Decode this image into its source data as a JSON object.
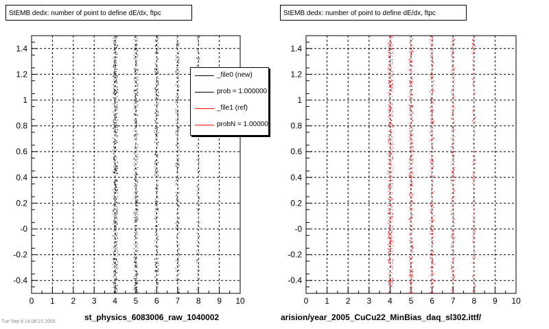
{
  "panels": [
    {
      "title": "StEMB dedx: number of point to define dE/dx, ftpc",
      "xtitle": "st_physics_6083006_raw_1040002"
    },
    {
      "title": "StEMB dedx: number of point to define dE/dx, ftpc",
      "xtitle": "arision/year_2005_CuCu22_MinBias_daq_sl302.ittf/"
    }
  ],
  "legend": [
    {
      "label": "_file0 (new)",
      "color": "#000000"
    },
    {
      "label": "prob = 1.000000",
      "color": "#000000"
    },
    {
      "label": "_file1 (ref)",
      "color": "#ff0000"
    },
    {
      "label": "probN = 1.000000",
      "color": "#ff0000"
    }
  ],
  "bottom_text": "Tue Sep  6  14:08:21  2005",
  "chart_data": [
    {
      "type": "scatter",
      "title": "StEMB dedx: number of point to define dE/dx, ftpc",
      "xlabel": "st_physics_6083006_raw_1040002",
      "ylabel": "",
      "xlim": [
        0,
        10
      ],
      "ylim": [
        -0.5,
        1.5
      ],
      "x_ticks": [
        "0",
        "1",
        "2",
        "3",
        "4",
        "5",
        "6",
        "7",
        "8",
        "9",
        "10"
      ],
      "y_ticks": [
        "-0.4",
        "-0.2",
        "-0",
        "0.2",
        "0.4",
        "0.6",
        "0.8",
        "1",
        "1.2",
        "1.4"
      ],
      "grid": true,
      "series": [
        {
          "color": "#000000",
          "x_columns": [
            4,
            5,
            6,
            7,
            8
          ],
          "density": [
            1.0,
            0.7,
            0.6,
            0.45,
            0.25
          ]
        }
      ]
    },
    {
      "type": "scatter",
      "title": "StEMB dedx: number of point to define dE/dx, ftpc",
      "xlabel": "arision/year_2005_CuCu22_MinBias_daq_sl302.ittf/",
      "ylabel": "",
      "xlim": [
        0,
        10
      ],
      "ylim": [
        -0.5,
        1.5
      ],
      "x_ticks": [
        "0",
        "1",
        "2",
        "3",
        "4",
        "5",
        "6",
        "7",
        "8",
        "9",
        "10"
      ],
      "y_ticks": [
        "-0.4",
        "-0.2",
        "-0",
        "0.2",
        "0.4",
        "0.6",
        "0.8",
        "1",
        "1.2",
        "1.4"
      ],
      "grid": true,
      "series": [
        {
          "color": "#ff0000",
          "x_columns": [
            4,
            5,
            6,
            7,
            8
          ],
          "density": [
            1.0,
            0.7,
            0.6,
            0.45,
            0.25
          ]
        }
      ]
    }
  ]
}
